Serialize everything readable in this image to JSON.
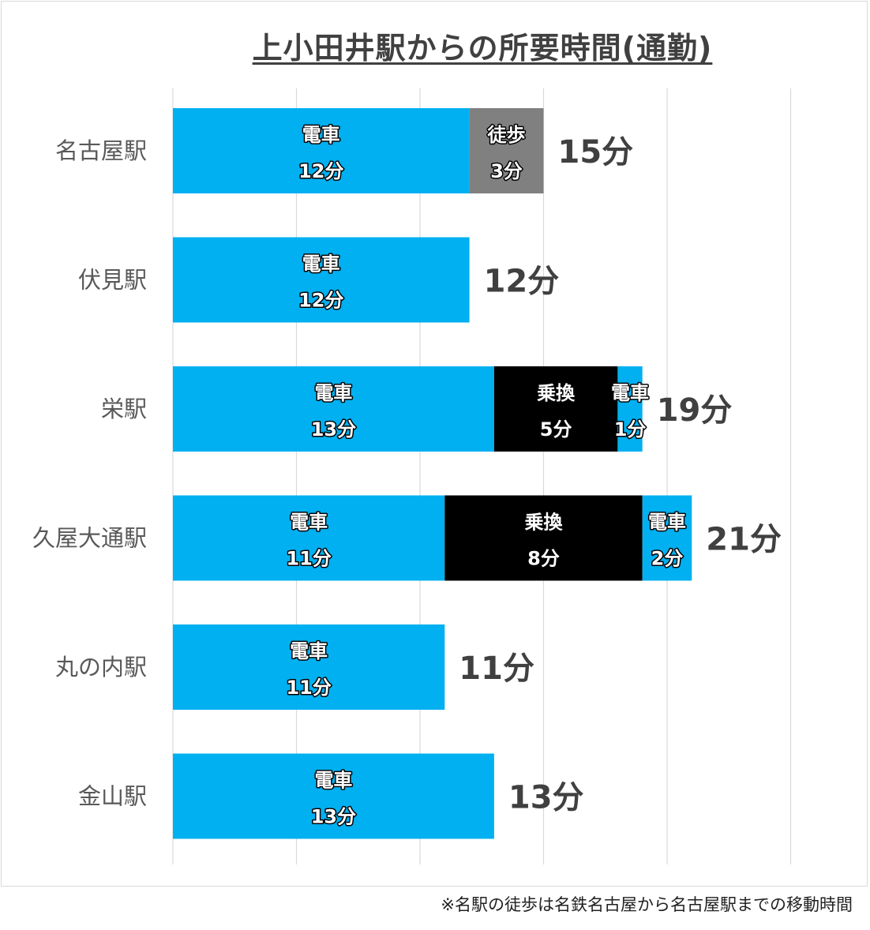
{
  "chart_data": {
    "type": "bar",
    "orientation": "horizontal",
    "stacked": true,
    "title": "上小田井駅からの所要時間(通勤)",
    "categories": [
      "名古屋駅",
      "伏見駅",
      "栄駅",
      "久屋大通駅",
      "丸の内駅",
      "金山駅"
    ],
    "xlim": [
      0,
      25
    ],
    "grid": true,
    "legend": "none",
    "unit_suffix": "分",
    "stacks": [
      {
        "category": "名古屋駅",
        "total": 15,
        "total_label": "15分",
        "segments": [
          {
            "mode": "電車",
            "value": 12,
            "label": "12分",
            "color": "#00b0f0"
          },
          {
            "mode": "徒歩",
            "value": 3,
            "label": "3分",
            "color": "#808080"
          }
        ]
      },
      {
        "category": "伏見駅",
        "total": 12,
        "total_label": "12分",
        "segments": [
          {
            "mode": "電車",
            "value": 12,
            "label": "12分",
            "color": "#00b0f0"
          }
        ]
      },
      {
        "category": "栄駅",
        "total": 19,
        "total_label": "19分",
        "segments": [
          {
            "mode": "電車",
            "value": 13,
            "label": "13分",
            "color": "#00b0f0"
          },
          {
            "mode": "乗換",
            "value": 5,
            "label": "5分",
            "color": "#000000"
          },
          {
            "mode": "電車",
            "value": 1,
            "label": "1分",
            "color": "#00b0f0"
          }
        ]
      },
      {
        "category": "久屋大通駅",
        "total": 21,
        "total_label": "21分",
        "segments": [
          {
            "mode": "電車",
            "value": 11,
            "label": "11分",
            "color": "#00b0f0"
          },
          {
            "mode": "乗換",
            "value": 8,
            "label": "8分",
            "color": "#000000"
          },
          {
            "mode": "電車",
            "value": 2,
            "label": "2分",
            "color": "#00b0f0"
          }
        ]
      },
      {
        "category": "丸の内駅",
        "total": 11,
        "total_label": "11分",
        "segments": [
          {
            "mode": "電車",
            "value": 11,
            "label": "11分",
            "color": "#00b0f0"
          }
        ]
      },
      {
        "category": "金山駅",
        "total": 13,
        "total_label": "13分",
        "segments": [
          {
            "mode": "電車",
            "value": 13,
            "label": "13分",
            "color": "#00b0f0"
          }
        ]
      }
    ]
  },
  "footnote": "※名駅の徒歩は名鉄名古屋から名古屋駅までの移動時間",
  "colors": {
    "train": "#00b0f0",
    "walk": "#808080",
    "transfer": "#000000",
    "grid": "#d9d9d9"
  }
}
